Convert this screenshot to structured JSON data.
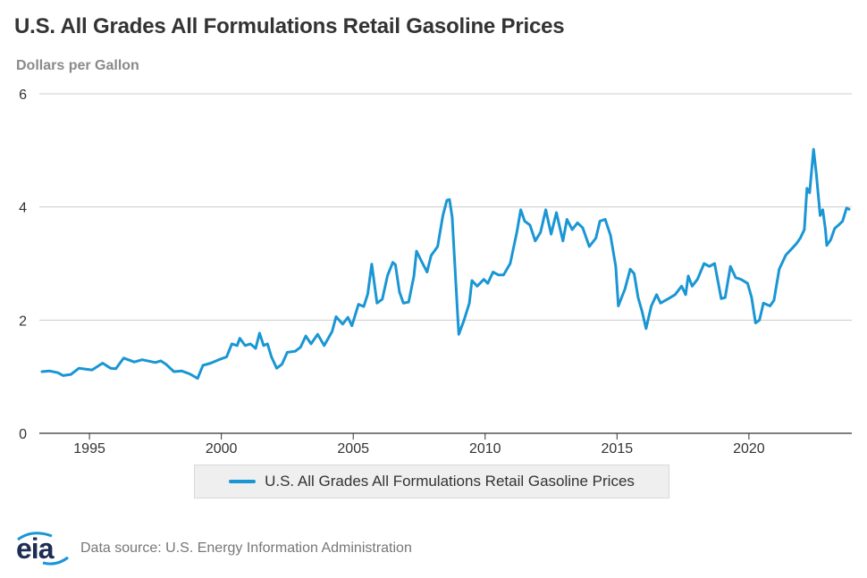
{
  "chart_data": {
    "type": "line",
    "title": "U.S. All Grades All Formulations Retail Gasoline Prices",
    "subtitle": "Dollars per Gallon",
    "xlabel": "",
    "ylabel": "",
    "xlim": [
      1993.1,
      2023.9
    ],
    "ylim": [
      0,
      6
    ],
    "yticks": [
      0,
      2,
      4,
      6
    ],
    "xticks": [
      1995,
      2000,
      2005,
      2010,
      2015,
      2020
    ],
    "grid": "horizontal",
    "legend_position": "bottom-center",
    "colors": {
      "line": "#1a96d4",
      "grid": "#cccccc",
      "axis": "#333333"
    },
    "series": [
      {
        "name": "U.S. All Grades All Formulations Retail Gasoline Prices",
        "points": [
          [
            1993.2,
            1.09
          ],
          [
            1993.5,
            1.1
          ],
          [
            1993.8,
            1.07
          ],
          [
            1994.0,
            1.02
          ],
          [
            1994.3,
            1.04
          ],
          [
            1994.6,
            1.15
          ],
          [
            1994.9,
            1.13
          ],
          [
            1995.1,
            1.12
          ],
          [
            1995.5,
            1.24
          ],
          [
            1995.8,
            1.15
          ],
          [
            1996.0,
            1.14
          ],
          [
            1996.3,
            1.33
          ],
          [
            1996.7,
            1.26
          ],
          [
            1997.0,
            1.3
          ],
          [
            1997.5,
            1.25
          ],
          [
            1997.7,
            1.28
          ],
          [
            1997.9,
            1.22
          ],
          [
            1998.2,
            1.09
          ],
          [
            1998.5,
            1.1
          ],
          [
            1998.8,
            1.05
          ],
          [
            1999.1,
            0.97
          ],
          [
            1999.3,
            1.2
          ],
          [
            1999.6,
            1.24
          ],
          [
            1999.9,
            1.3
          ],
          [
            2000.2,
            1.35
          ],
          [
            2000.4,
            1.58
          ],
          [
            2000.6,
            1.55
          ],
          [
            2000.7,
            1.68
          ],
          [
            2000.9,
            1.55
          ],
          [
            2001.1,
            1.58
          ],
          [
            2001.3,
            1.5
          ],
          [
            2001.45,
            1.77
          ],
          [
            2001.6,
            1.55
          ],
          [
            2001.75,
            1.58
          ],
          [
            2001.9,
            1.35
          ],
          [
            2002.1,
            1.15
          ],
          [
            2002.3,
            1.22
          ],
          [
            2002.5,
            1.43
          ],
          [
            2002.8,
            1.45
          ],
          [
            2003.0,
            1.52
          ],
          [
            2003.2,
            1.72
          ],
          [
            2003.4,
            1.58
          ],
          [
            2003.65,
            1.75
          ],
          [
            2003.9,
            1.55
          ],
          [
            2004.2,
            1.8
          ],
          [
            2004.35,
            2.06
          ],
          [
            2004.6,
            1.93
          ],
          [
            2004.8,
            2.05
          ],
          [
            2004.95,
            1.9
          ],
          [
            2005.2,
            2.28
          ],
          [
            2005.4,
            2.24
          ],
          [
            2005.55,
            2.46
          ],
          [
            2005.7,
            2.99
          ],
          [
            2005.9,
            2.3
          ],
          [
            2006.1,
            2.37
          ],
          [
            2006.3,
            2.79
          ],
          [
            2006.5,
            3.02
          ],
          [
            2006.6,
            2.98
          ],
          [
            2006.75,
            2.5
          ],
          [
            2006.9,
            2.3
          ],
          [
            2007.1,
            2.32
          ],
          [
            2007.3,
            2.78
          ],
          [
            2007.4,
            3.22
          ],
          [
            2007.6,
            3.03
          ],
          [
            2007.8,
            2.85
          ],
          [
            2007.95,
            3.14
          ],
          [
            2008.2,
            3.3
          ],
          [
            2008.4,
            3.85
          ],
          [
            2008.55,
            4.12
          ],
          [
            2008.65,
            4.13
          ],
          [
            2008.75,
            3.82
          ],
          [
            2008.95,
            2.15
          ],
          [
            2009.0,
            1.75
          ],
          [
            2009.2,
            2.0
          ],
          [
            2009.4,
            2.3
          ],
          [
            2009.5,
            2.7
          ],
          [
            2009.7,
            2.6
          ],
          [
            2009.95,
            2.72
          ],
          [
            2010.1,
            2.65
          ],
          [
            2010.3,
            2.85
          ],
          [
            2010.5,
            2.8
          ],
          [
            2010.7,
            2.8
          ],
          [
            2010.95,
            3.0
          ],
          [
            2011.2,
            3.55
          ],
          [
            2011.35,
            3.95
          ],
          [
            2011.5,
            3.75
          ],
          [
            2011.7,
            3.68
          ],
          [
            2011.9,
            3.4
          ],
          [
            2012.1,
            3.55
          ],
          [
            2012.3,
            3.95
          ],
          [
            2012.5,
            3.52
          ],
          [
            2012.7,
            3.9
          ],
          [
            2012.95,
            3.4
          ],
          [
            2013.1,
            3.78
          ],
          [
            2013.3,
            3.6
          ],
          [
            2013.5,
            3.72
          ],
          [
            2013.7,
            3.63
          ],
          [
            2013.95,
            3.3
          ],
          [
            2014.2,
            3.45
          ],
          [
            2014.35,
            3.75
          ],
          [
            2014.55,
            3.78
          ],
          [
            2014.75,
            3.5
          ],
          [
            2014.95,
            2.95
          ],
          [
            2015.05,
            2.25
          ],
          [
            2015.3,
            2.55
          ],
          [
            2015.5,
            2.9
          ],
          [
            2015.65,
            2.82
          ],
          [
            2015.8,
            2.4
          ],
          [
            2015.95,
            2.15
          ],
          [
            2016.1,
            1.85
          ],
          [
            2016.3,
            2.25
          ],
          [
            2016.5,
            2.45
          ],
          [
            2016.65,
            2.3
          ],
          [
            2016.95,
            2.38
          ],
          [
            2017.2,
            2.45
          ],
          [
            2017.45,
            2.6
          ],
          [
            2017.6,
            2.45
          ],
          [
            2017.7,
            2.78
          ],
          [
            2017.85,
            2.6
          ],
          [
            2018.05,
            2.72
          ],
          [
            2018.3,
            3.0
          ],
          [
            2018.5,
            2.95
          ],
          [
            2018.7,
            3.0
          ],
          [
            2018.95,
            2.38
          ],
          [
            2019.1,
            2.4
          ],
          [
            2019.3,
            2.95
          ],
          [
            2019.5,
            2.75
          ],
          [
            2019.7,
            2.72
          ],
          [
            2019.95,
            2.65
          ],
          [
            2020.1,
            2.4
          ],
          [
            2020.25,
            1.95
          ],
          [
            2020.4,
            2.0
          ],
          [
            2020.55,
            2.3
          ],
          [
            2020.8,
            2.25
          ],
          [
            2020.95,
            2.35
          ],
          [
            2021.15,
            2.9
          ],
          [
            2021.4,
            3.15
          ],
          [
            2021.6,
            3.25
          ],
          [
            2021.8,
            3.35
          ],
          [
            2021.95,
            3.45
          ],
          [
            2022.1,
            3.6
          ],
          [
            2022.2,
            4.33
          ],
          [
            2022.3,
            4.25
          ],
          [
            2022.45,
            5.02
          ],
          [
            2022.55,
            4.6
          ],
          [
            2022.7,
            3.85
          ],
          [
            2022.8,
            3.95
          ],
          [
            2022.9,
            3.6
          ],
          [
            2022.95,
            3.32
          ],
          [
            2023.1,
            3.42
          ],
          [
            2023.25,
            3.62
          ],
          [
            2023.4,
            3.68
          ],
          [
            2023.55,
            3.75
          ],
          [
            2023.7,
            3.98
          ],
          [
            2023.8,
            3.96
          ]
        ]
      }
    ]
  },
  "footer": {
    "logo_text": "eia",
    "source": "Data source: U.S. Energy Information Administration"
  }
}
